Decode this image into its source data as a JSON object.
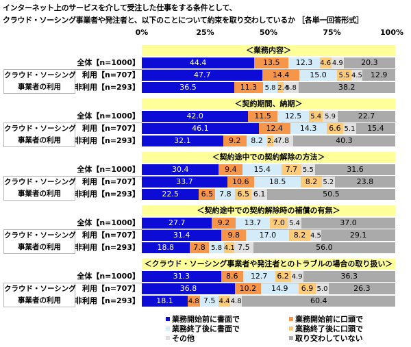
{
  "chart_data": {
    "type": "bar",
    "orientation": "horizontal",
    "stacked": true,
    "title": "インターネット上のサービスを介して受注した仕事をする条件として、クラウド・ソーシング事業者や発注者と、以下のことについて約束を取り交わしているか ［各単一回答形式］",
    "title_lines": [
      "インターネット上のサービスを介して受注した仕事をする条件として、",
      "クラウド・ソーシング事業者や発注者と、以下のことについて約束を取り交わしているか ［各単一回答形式］"
    ],
    "xlabel": "",
    "ylabel": "",
    "xlim": [
      0,
      100
    ],
    "x_ticks": [
      "0%",
      "25%",
      "50%",
      "75%",
      "100%"
    ],
    "grid": false,
    "legend_position": "bottom",
    "series_names": [
      "業務開始前に書面で",
      "業務開始前に口頭で",
      "業務終了後に書面で",
      "業務終了後に口頭で",
      "その他",
      "取り交わしていない"
    ],
    "colors": [
      "#0c0cd6",
      "#f5964a",
      "#d4ecfa",
      "#fbcb7a",
      "#e0e0e0",
      "#aaaaaa"
    ],
    "row_labels": [
      "全体【n=1000】",
      "利用【n=707】",
      "非利用【n=293】"
    ],
    "subgroup_label": [
      "クラウド・ソーシング",
      "事業者の利用"
    ],
    "groups": [
      {
        "title": "＜業務内容＞",
        "rows": [
          {
            "label": "全体【n=1000】",
            "values": [
              44.4,
              13.5,
              12.3,
              4.6,
              4.9,
              20.3
            ]
          },
          {
            "label": "利用【n=707】",
            "values": [
              47.7,
              14.4,
              15.0,
              5.5,
              4.5,
              12.9
            ]
          },
          {
            "label": "非利用【n=293】",
            "values": [
              36.5,
              11.3,
              5.8,
              2.4,
              5.8,
              38.2
            ]
          }
        ]
      },
      {
        "title": "＜契約期間、納期＞",
        "rows": [
          {
            "label": "全体【n=1000】",
            "values": [
              42.0,
              11.5,
              12.5,
              5.4,
              5.9,
              22.7
            ]
          },
          {
            "label": "利用【n=707】",
            "values": [
              46.1,
              12.4,
              14.3,
              6.6,
              5.1,
              15.4
            ]
          },
          {
            "label": "非利用【n=293】",
            "values": [
              32.1,
              9.2,
              8.2,
              2.4,
              7.8,
              40.3
            ]
          }
        ]
      },
      {
        "title": "＜契約途中での契約解除の方法＞",
        "rows": [
          {
            "label": "全体【n=1000】",
            "values": [
              30.4,
              9.4,
              15.4,
              7.7,
              5.5,
              31.6
            ]
          },
          {
            "label": "利用【n=707】",
            "values": [
              33.7,
              10.6,
              18.5,
              8.2,
              5.2,
              23.8
            ]
          },
          {
            "label": "非利用【n=293】",
            "values": [
              22.5,
              6.5,
              7.8,
              6.5,
              6.1,
              50.5
            ]
          }
        ]
      },
      {
        "title": "＜契約途中での契約解除時の補償の有無＞",
        "rows": [
          {
            "label": "全体【n=1000】",
            "values": [
              27.7,
              9.2,
              13.7,
              7.0,
              5.4,
              37.0
            ]
          },
          {
            "label": "利用【n=707】",
            "values": [
              31.4,
              9.8,
              17.0,
              8.2,
              4.5,
              29.1
            ]
          },
          {
            "label": "非利用【n=293】",
            "values": [
              18.8,
              7.8,
              5.8,
              4.1,
              7.5,
              56.0
            ]
          }
        ]
      },
      {
        "title": "＜クラウド・ソーシング事業者や発注者とのトラブルの場合の取り扱い＞",
        "rows": [
          {
            "label": "全体【n=1000】",
            "values": [
              31.3,
              8.6,
              12.7,
              6.2,
              4.9,
              36.3
            ]
          },
          {
            "label": "利用【n=707】",
            "values": [
              36.8,
              10.2,
              14.9,
              6.9,
              5.0,
              26.3
            ]
          },
          {
            "label": "非利用【n=293】",
            "values": [
              18.1,
              4.8,
              7.5,
              4.4,
              4.8,
              60.4
            ]
          }
        ]
      }
    ]
  }
}
